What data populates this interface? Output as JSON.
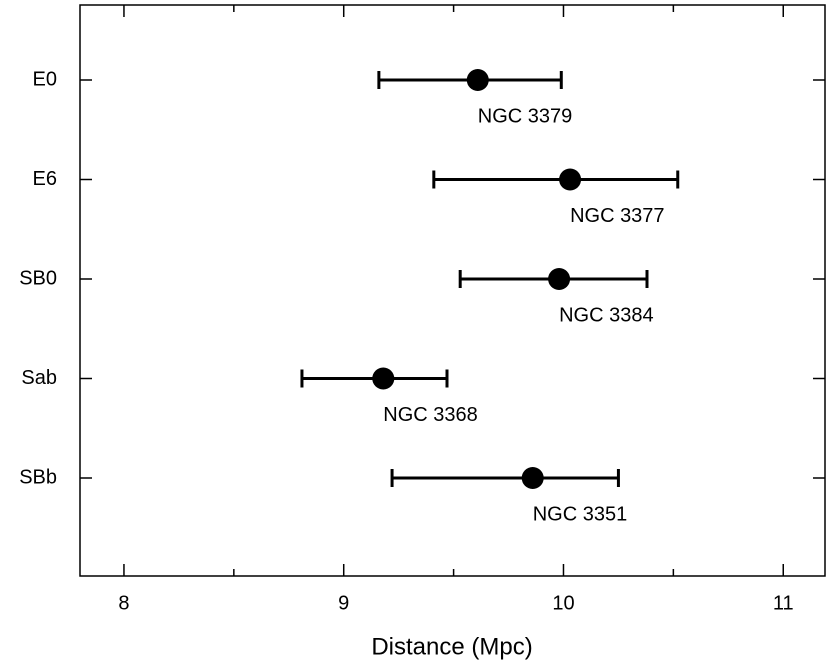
{
  "chart_data": {
    "type": "errorbar",
    "xlabel": "Distance (Mpc)",
    "categories": [
      "E0",
      "E6",
      "SB0",
      "Sab",
      "SBb"
    ],
    "values": [
      9.61,
      10.03,
      9.98,
      9.18,
      9.86
    ],
    "lower": [
      9.16,
      9.41,
      9.53,
      8.81,
      9.22
    ],
    "upper": [
      9.99,
      10.52,
      10.38,
      9.47,
      10.25
    ],
    "point_labels": [
      "NGC 3379",
      "NGC 3377",
      "NGC 3384",
      "NGC 3368",
      "NGC 3351"
    ],
    "xlim": [
      7.8,
      11.19
    ],
    "xticks": [
      8,
      9,
      10,
      11
    ],
    "xminorticks": [
      8.5,
      9.5,
      10.5
    ],
    "color": "#000000"
  }
}
